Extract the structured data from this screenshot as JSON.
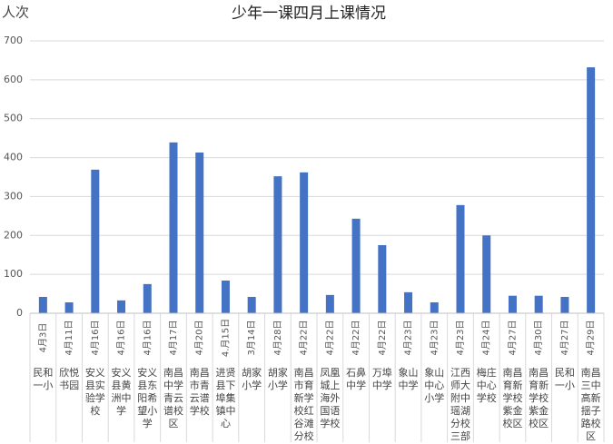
{
  "chart_data": {
    "type": "bar",
    "title": "少年一课四月上课情况",
    "y_label": "人次",
    "categories": [
      "民和一小",
      "欣悦书园",
      "安义县实验学校",
      "安义县黄洲中学",
      "安义县东阳希望小学",
      "南昌中学青云谱校区",
      "南昌市青云谱学校",
      "进贤县下埠集镇中心",
      "胡家小学",
      "胡家小学",
      "南昌市育新学校红谷滩分校",
      "凤凰城上海外国语学校",
      "石鼻中学",
      "万埠中学",
      "象山中学",
      "象山中心小学",
      "江西师大附中瑶湖分校三部",
      "梅庄中心学校",
      "南昌育新学校紫金校区",
      "南昌育新学校紫金校区",
      "民和一小",
      "南昌三中高新揺子路校区"
    ],
    "dates": [
      "4月3日",
      "4月11日",
      "4月16日",
      "4月16日",
      "4月16日",
      "4月17日",
      "4月20日",
      "4.月15日",
      "3月14日",
      "4月28日",
      "4月22日",
      "4月22日",
      "4月22日",
      "4月22日",
      "4月23日",
      "4月23日",
      "4月23日",
      "4月24日",
      "4月27日",
      "4月30日",
      "4月27日",
      "4月29日"
    ],
    "values": [
      42,
      28,
      369,
      33,
      75,
      439,
      413,
      84,
      42,
      352,
      362,
      47,
      243,
      175,
      54,
      28,
      278,
      200,
      45,
      45,
      42,
      632
    ],
    "color": "#4472c4",
    "ylim": [
      0,
      700
    ],
    "yticks": [
      0,
      100,
      200,
      300,
      400,
      500,
      600,
      700
    ],
    "grid": true
  }
}
